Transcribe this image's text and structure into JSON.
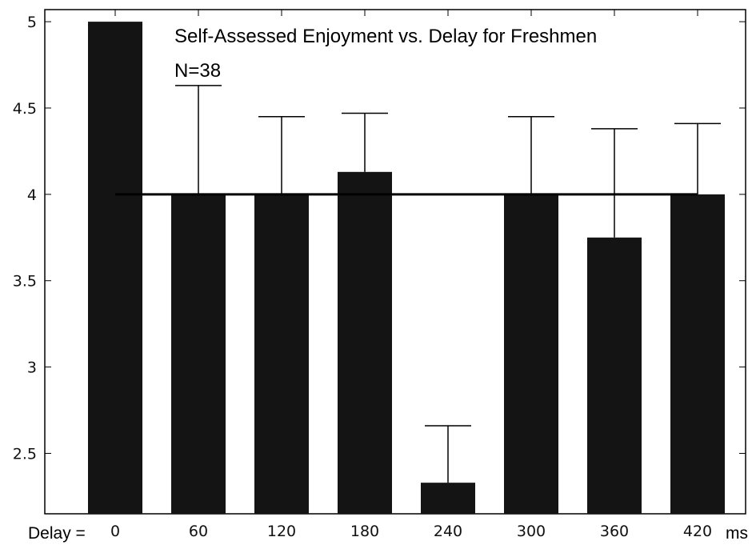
{
  "chart_data": {
    "type": "bar",
    "title": "Self-Assessed Enjoyment vs. Delay for Freshmen",
    "subtitle": "N=38",
    "xlabel_prefix": "Delay =",
    "xlabel_unit": "ms",
    "ylabel": "",
    "categories": [
      "0",
      "60",
      "120",
      "180",
      "240",
      "300",
      "360",
      "420"
    ],
    "values": [
      5.0,
      4.0,
      4.0,
      4.13,
      2.33,
      4.0,
      3.75,
      4.0
    ],
    "error_upper": [
      5.0,
      4.63,
      4.45,
      4.47,
      2.66,
      4.45,
      4.38,
      4.41
    ],
    "reference_line": {
      "value": 4.0,
      "from_category": "0",
      "to_category": "420"
    },
    "yticks": [
      "2.5",
      "3",
      "3.5",
      "4",
      "4.5",
      "5"
    ],
    "ylim": [
      2.15,
      5.07
    ],
    "grid": false,
    "colors": {
      "bar": "#141414",
      "line": "#000000"
    }
  }
}
